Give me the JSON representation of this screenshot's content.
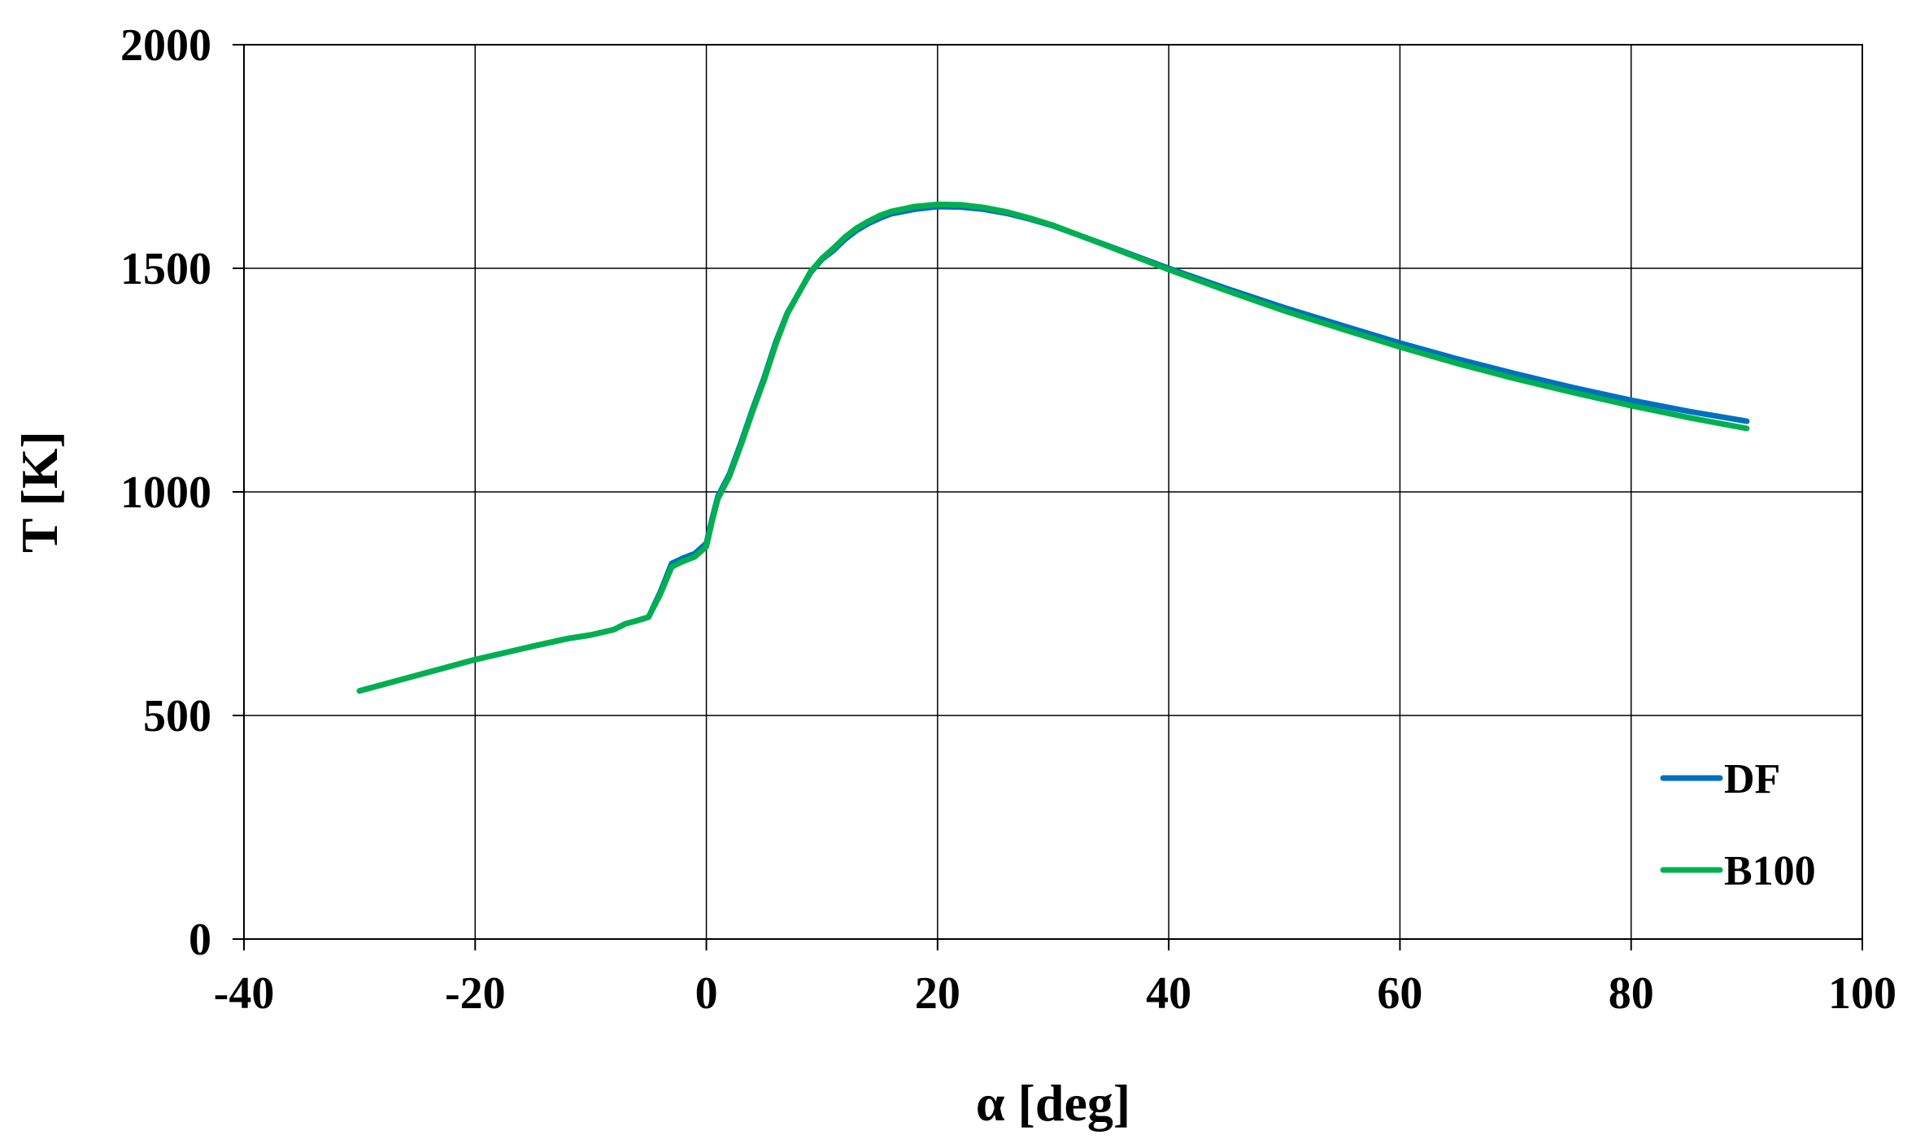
{
  "chart_data": {
    "type": "line",
    "title": "",
    "xlabel": "α [deg]",
    "ylabel": "T [K]",
    "xlim": [
      -40,
      100
    ],
    "ylim": [
      0,
      2000
    ],
    "xticks": [
      -40,
      -20,
      0,
      20,
      40,
      60,
      80,
      100
    ],
    "yticks": [
      0,
      500,
      1000,
      1500,
      2000
    ],
    "xtick_labels": [
      "-40",
      "-20",
      "0",
      "20",
      "40",
      "60",
      "80",
      "100"
    ],
    "ytick_labels": [
      "0",
      "500",
      "1000",
      "1500",
      "2000"
    ],
    "grid": true,
    "legend_position": "bottom-right",
    "series": [
      {
        "name": "DF",
        "color": "#0070c0",
        "x": [
          -30,
          -25,
          -20,
          -15,
          -12,
          -10,
          -8,
          -7,
          -6,
          -5,
          -4,
          -3,
          -2,
          -1,
          0,
          0.5,
          1,
          2,
          3,
          4,
          5,
          6,
          7,
          8,
          9,
          10,
          11,
          12,
          13,
          14,
          15,
          16,
          18,
          20,
          22,
          24,
          26,
          28,
          30,
          35,
          40,
          45,
          50,
          55,
          60,
          65,
          70,
          75,
          80,
          85,
          90
        ],
        "values": [
          555,
          590,
          625,
          655,
          672,
          680,
          692,
          705,
          712,
          720,
          775,
          840,
          852,
          862,
          885,
          940,
          990,
          1040,
          1110,
          1185,
          1255,
          1335,
          1400,
          1445,
          1490,
          1520,
          1540,
          1565,
          1585,
          1600,
          1612,
          1622,
          1632,
          1638,
          1637,
          1632,
          1623,
          1610,
          1595,
          1548,
          1500,
          1455,
          1412,
          1372,
          1333,
          1297,
          1264,
          1233,
          1205,
          1180,
          1158
        ]
      },
      {
        "name": "B100",
        "color": "#00b050",
        "x": [
          -30,
          -25,
          -20,
          -15,
          -12,
          -10,
          -8,
          -7,
          -6,
          -5,
          -4,
          -3,
          -2,
          -1,
          0,
          0.5,
          1,
          2,
          3,
          4,
          5,
          6,
          7,
          8,
          9,
          10,
          11,
          12,
          13,
          14,
          15,
          16,
          18,
          20,
          22,
          24,
          26,
          28,
          30,
          35,
          40,
          45,
          50,
          55,
          60,
          65,
          70,
          75,
          80,
          85,
          90
        ],
        "values": [
          555,
          590,
          625,
          655,
          672,
          680,
          692,
          705,
          712,
          720,
          770,
          832,
          845,
          855,
          878,
          935,
          985,
          1035,
          1105,
          1180,
          1250,
          1330,
          1398,
          1445,
          1492,
          1522,
          1545,
          1570,
          1590,
          1605,
          1618,
          1627,
          1638,
          1643,
          1642,
          1636,
          1626,
          1612,
          1596,
          1547,
          1497,
          1450,
          1405,
          1364,
          1324,
          1287,
          1253,
          1222,
          1193,
          1166,
          1142
        ]
      }
    ]
  }
}
